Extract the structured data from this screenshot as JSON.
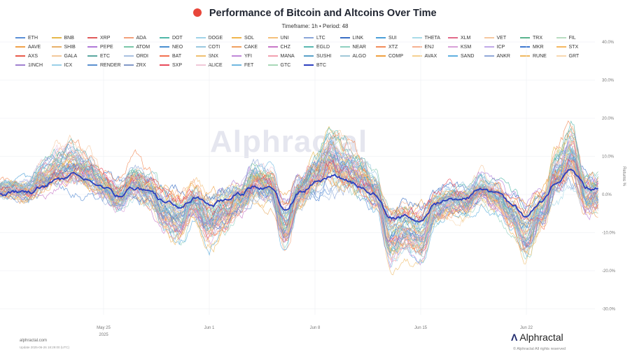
{
  "header": {
    "title": "Performance of Bitcoin and Altcoins Over Time",
    "subtitle": "Timeframe: 1h  •  Period: 48"
  },
  "watermark": "Alphractal",
  "footer": {
    "site": "alphractal.com",
    "updated": "Update 2025-06-26 18:29:00 (UTC)",
    "brand": "Alphractal",
    "copyright": "© Alphractal All rights reserved"
  },
  "colors": {
    "btc": "#2b3fbf",
    "grid": "#eceef2"
  },
  "chart_data": {
    "type": "line",
    "title": "Performance of Bitcoin and Altcoins Over Time",
    "xlabel": "",
    "ylabel": "Returns %",
    "ylim": [
      -32,
      42
    ],
    "y_ticks": [
      40,
      30,
      20,
      10,
      0,
      -10,
      -20,
      -30
    ],
    "y_tick_labels": [
      "40.0%",
      "30.0%",
      "20.0%",
      "10.0%",
      "0.0%",
      "-10.0%",
      "-20.0%",
      "-30.0%"
    ],
    "x_range": [
      "2025-05-20T00:00",
      "2025-06-26T18:00"
    ],
    "x_ticks": [
      "2025-05-25",
      "2025-06-01",
      "2025-06-08",
      "2025-06-15",
      "2025-06-22"
    ],
    "x_tick_labels": [
      "May 25",
      "Jun 1",
      "Jun 8",
      "Jun 15",
      "Jun 22"
    ],
    "x_tick_year": "2025",
    "grid": true,
    "legend_position": "top",
    "btc_series": {
      "name": "BTC",
      "color": "#2b3fbf",
      "x": [
        "2025-05-20",
        "2025-05-21",
        "2025-05-22",
        "2025-05-23",
        "2025-05-24",
        "2025-05-25",
        "2025-05-26",
        "2025-05-27",
        "2025-05-28",
        "2025-05-29",
        "2025-05-30",
        "2025-05-31",
        "2025-06-01",
        "2025-06-02",
        "2025-06-03",
        "2025-06-04",
        "2025-06-05",
        "2025-06-06",
        "2025-06-07",
        "2025-06-08",
        "2025-06-09",
        "2025-06-10",
        "2025-06-11",
        "2025-06-12",
        "2025-06-13",
        "2025-06-14",
        "2025-06-15",
        "2025-06-16",
        "2025-06-17",
        "2025-06-18",
        "2025-06-19",
        "2025-06-20",
        "2025-06-21",
        "2025-06-22",
        "2025-06-23",
        "2025-06-24",
        "2025-06-25",
        "2025-06-26"
      ],
      "values": [
        0.5,
        2.5,
        4.0,
        5.0,
        3.5,
        1.5,
        -0.5,
        2.0,
        0.5,
        -2.0,
        -3.0,
        -1.0,
        -2.5,
        -1.5,
        0.0,
        2.0,
        1.5,
        -4.5,
        0.5,
        3.0,
        5.0,
        3.5,
        2.5,
        0.5,
        -6.0,
        -5.5,
        -7.0,
        -2.5,
        -1.0,
        -0.5,
        1.5,
        0.0,
        -2.5,
        -6.5,
        -2.5,
        2.5,
        5.5,
        1.5
      ]
    },
    "altcoin_envelope": {
      "x": [
        "2025-05-20",
        "2025-05-21",
        "2025-05-22",
        "2025-05-23",
        "2025-05-24",
        "2025-05-25",
        "2025-05-26",
        "2025-05-27",
        "2025-05-28",
        "2025-05-29",
        "2025-05-30",
        "2025-05-31",
        "2025-06-01",
        "2025-06-02",
        "2025-06-03",
        "2025-06-04",
        "2025-06-05",
        "2025-06-06",
        "2025-06-07",
        "2025-06-08",
        "2025-06-09",
        "2025-06-10",
        "2025-06-11",
        "2025-06-12",
        "2025-06-13",
        "2025-06-14",
        "2025-06-15",
        "2025-06-16",
        "2025-06-17",
        "2025-06-18",
        "2025-06-19",
        "2025-06-20",
        "2025-06-21",
        "2025-06-22",
        "2025-06-23",
        "2025-06-24",
        "2025-06-25",
        "2025-06-26"
      ],
      "mean": [
        1,
        4,
        6,
        7,
        5,
        2,
        -1,
        3,
        1,
        -4,
        -6,
        -2,
        -7,
        -4,
        -1,
        3,
        2,
        -8,
        0,
        4,
        8,
        6,
        4,
        0,
        -11,
        -9,
        -11,
        -4,
        -2,
        -2,
        1,
        -1,
        -5,
        -10,
        -4,
        5,
        10,
        0
      ],
      "spread": [
        6,
        8,
        9,
        9,
        9,
        8,
        8,
        9,
        9,
        9,
        10,
        9,
        11,
        10,
        9,
        10,
        10,
        10,
        9,
        10,
        12,
        11,
        10,
        9,
        10,
        9,
        9,
        9,
        8,
        8,
        8,
        8,
        8,
        9,
        9,
        11,
        12,
        10
      ]
    },
    "series": [
      {
        "name": "ETH",
        "color": "#5b8fd6"
      },
      {
        "name": "BNB",
        "color": "#e6b84a"
      },
      {
        "name": "XRP",
        "color": "#e05a5a"
      },
      {
        "name": "ADA",
        "color": "#f2a07a"
      },
      {
        "name": "DOT",
        "color": "#4fb7a8"
      },
      {
        "name": "DOGE",
        "color": "#9fd3e8"
      },
      {
        "name": "SOL",
        "color": "#f0b64c"
      },
      {
        "name": "UNI",
        "color": "#f5c07a"
      },
      {
        "name": "LTC",
        "color": "#8aa5d8"
      },
      {
        "name": "LINK",
        "color": "#3a6fc4"
      },
      {
        "name": "SUI",
        "color": "#4a9fd8"
      },
      {
        "name": "THETA",
        "color": "#a8dbe8"
      },
      {
        "name": "XLM",
        "color": "#e26a8a"
      },
      {
        "name": "VET",
        "color": "#f6c8a0"
      },
      {
        "name": "TRX",
        "color": "#5ab48e"
      },
      {
        "name": "FIL",
        "color": "#b8dcc0"
      },
      {
        "name": "AAVE",
        "color": "#f0a24a"
      },
      {
        "name": "SHIB",
        "color": "#e8b06a"
      },
      {
        "name": "PEPE",
        "color": "#b07ad8"
      },
      {
        "name": "ATOM",
        "color": "#7ac6a8"
      },
      {
        "name": "NEO",
        "color": "#4a8fd0"
      },
      {
        "name": "COTI",
        "color": "#9ac8e0"
      },
      {
        "name": "CAKE",
        "color": "#f0a060"
      },
      {
        "name": "CHZ",
        "color": "#c878c8"
      },
      {
        "name": "EGLD",
        "color": "#5ab8b0"
      },
      {
        "name": "NEAR",
        "color": "#8fd0c0"
      },
      {
        "name": "XTZ",
        "color": "#f28c5a"
      },
      {
        "name": "ENJ",
        "color": "#f6b090"
      },
      {
        "name": "KSM",
        "color": "#d8a0d8"
      },
      {
        "name": "ICP",
        "color": "#c0a8e8"
      },
      {
        "name": "MKR",
        "color": "#3f7ad0"
      },
      {
        "name": "STX",
        "color": "#f5b860"
      },
      {
        "name": "AXS",
        "color": "#e85a4a"
      },
      {
        "name": "GALA",
        "color": "#f2c89a"
      },
      {
        "name": "ETC",
        "color": "#5aa8a0"
      },
      {
        "name": "ORDI",
        "color": "#a8c0e0"
      },
      {
        "name": "BAT",
        "color": "#f27050"
      },
      {
        "name": "SNX",
        "color": "#f0c070"
      },
      {
        "name": "YFI",
        "color": "#c088d8"
      },
      {
        "name": "MANA",
        "color": "#f2a0b0"
      },
      {
        "name": "SUSHI",
        "color": "#58a0c8"
      },
      {
        "name": "ALGO",
        "color": "#a0c8d8"
      },
      {
        "name": "COMP",
        "color": "#f0a040"
      },
      {
        "name": "AVAX",
        "color": "#f5d090"
      },
      {
        "name": "SAND",
        "color": "#60b0e0"
      },
      {
        "name": "ANKR",
        "color": "#90a8d8"
      },
      {
        "name": "RUNE",
        "color": "#f0b860"
      },
      {
        "name": "GRT",
        "color": "#f8d8b0"
      },
      {
        "name": "1INCH",
        "color": "#a080d0"
      },
      {
        "name": "ICX",
        "color": "#9ad0e8"
      },
      {
        "name": "RENDER",
        "color": "#5a90d0"
      },
      {
        "name": "ZRX",
        "color": "#8098c8"
      },
      {
        "name": "SXP",
        "color": "#e84a5a"
      },
      {
        "name": "ALICE",
        "color": "#f0c8d8"
      },
      {
        "name": "FET",
        "color": "#70b8e0"
      },
      {
        "name": "GTC",
        "color": "#a8d8b8"
      },
      {
        "name": "BTC",
        "color": "#2b3fbf"
      }
    ]
  }
}
